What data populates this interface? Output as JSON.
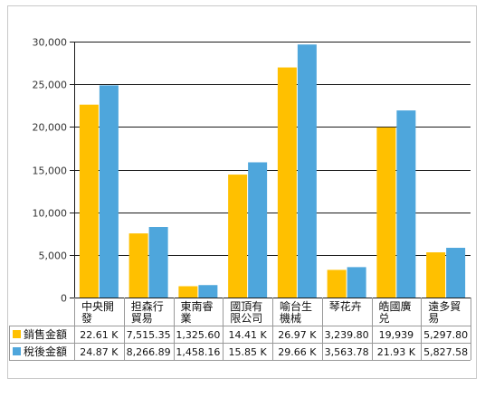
{
  "chart_data": {
    "type": "bar",
    "title": "",
    "xlabel": "",
    "ylabel": "",
    "ylim": [
      0,
      30000
    ],
    "yticks": [
      0,
      5000,
      10000,
      15000,
      20000,
      25000,
      30000
    ],
    "ytick_labels": [
      "0",
      "5,000",
      "10,000",
      "15,000",
      "20,000",
      "25,000",
      "30,000"
    ],
    "grid": true,
    "legend": "embedded in data table below the chart",
    "categories": [
      [
        "中央開",
        "發"
      ],
      [
        "担森行",
        "貿易"
      ],
      [
        "東南睿",
        "業"
      ],
      [
        "國頂有",
        "限公司"
      ],
      [
        "喻台生",
        "機械"
      ],
      [
        "琴花卉"
      ],
      [
        "皓國廣",
        "兑"
      ],
      [
        "遠多貿",
        "易"
      ]
    ],
    "series": [
      {
        "name": "銷售金額",
        "color": "#FFC000",
        "values": [
          22610,
          7515.35,
          1325.6,
          14410,
          26970,
          3239.8,
          19939,
          5297.8
        ],
        "labels": [
          "22.61 K",
          "7,515.35",
          "1,325.60",
          "14.41 K",
          "26.97 K",
          "3,239.80",
          "19,939",
          "5,297.80"
        ]
      },
      {
        "name": "稅後金額",
        "color": "#4EA6DC",
        "values": [
          24870,
          8266.89,
          1458.16,
          15850,
          29660,
          3563.78,
          21930,
          5827.58
        ],
        "labels": [
          "24.87 K",
          "8,266.89",
          "1,458.16",
          "15.85 K",
          "29.66 K",
          "3,563.78",
          "21.93 K",
          "5,827.58"
        ]
      }
    ]
  }
}
